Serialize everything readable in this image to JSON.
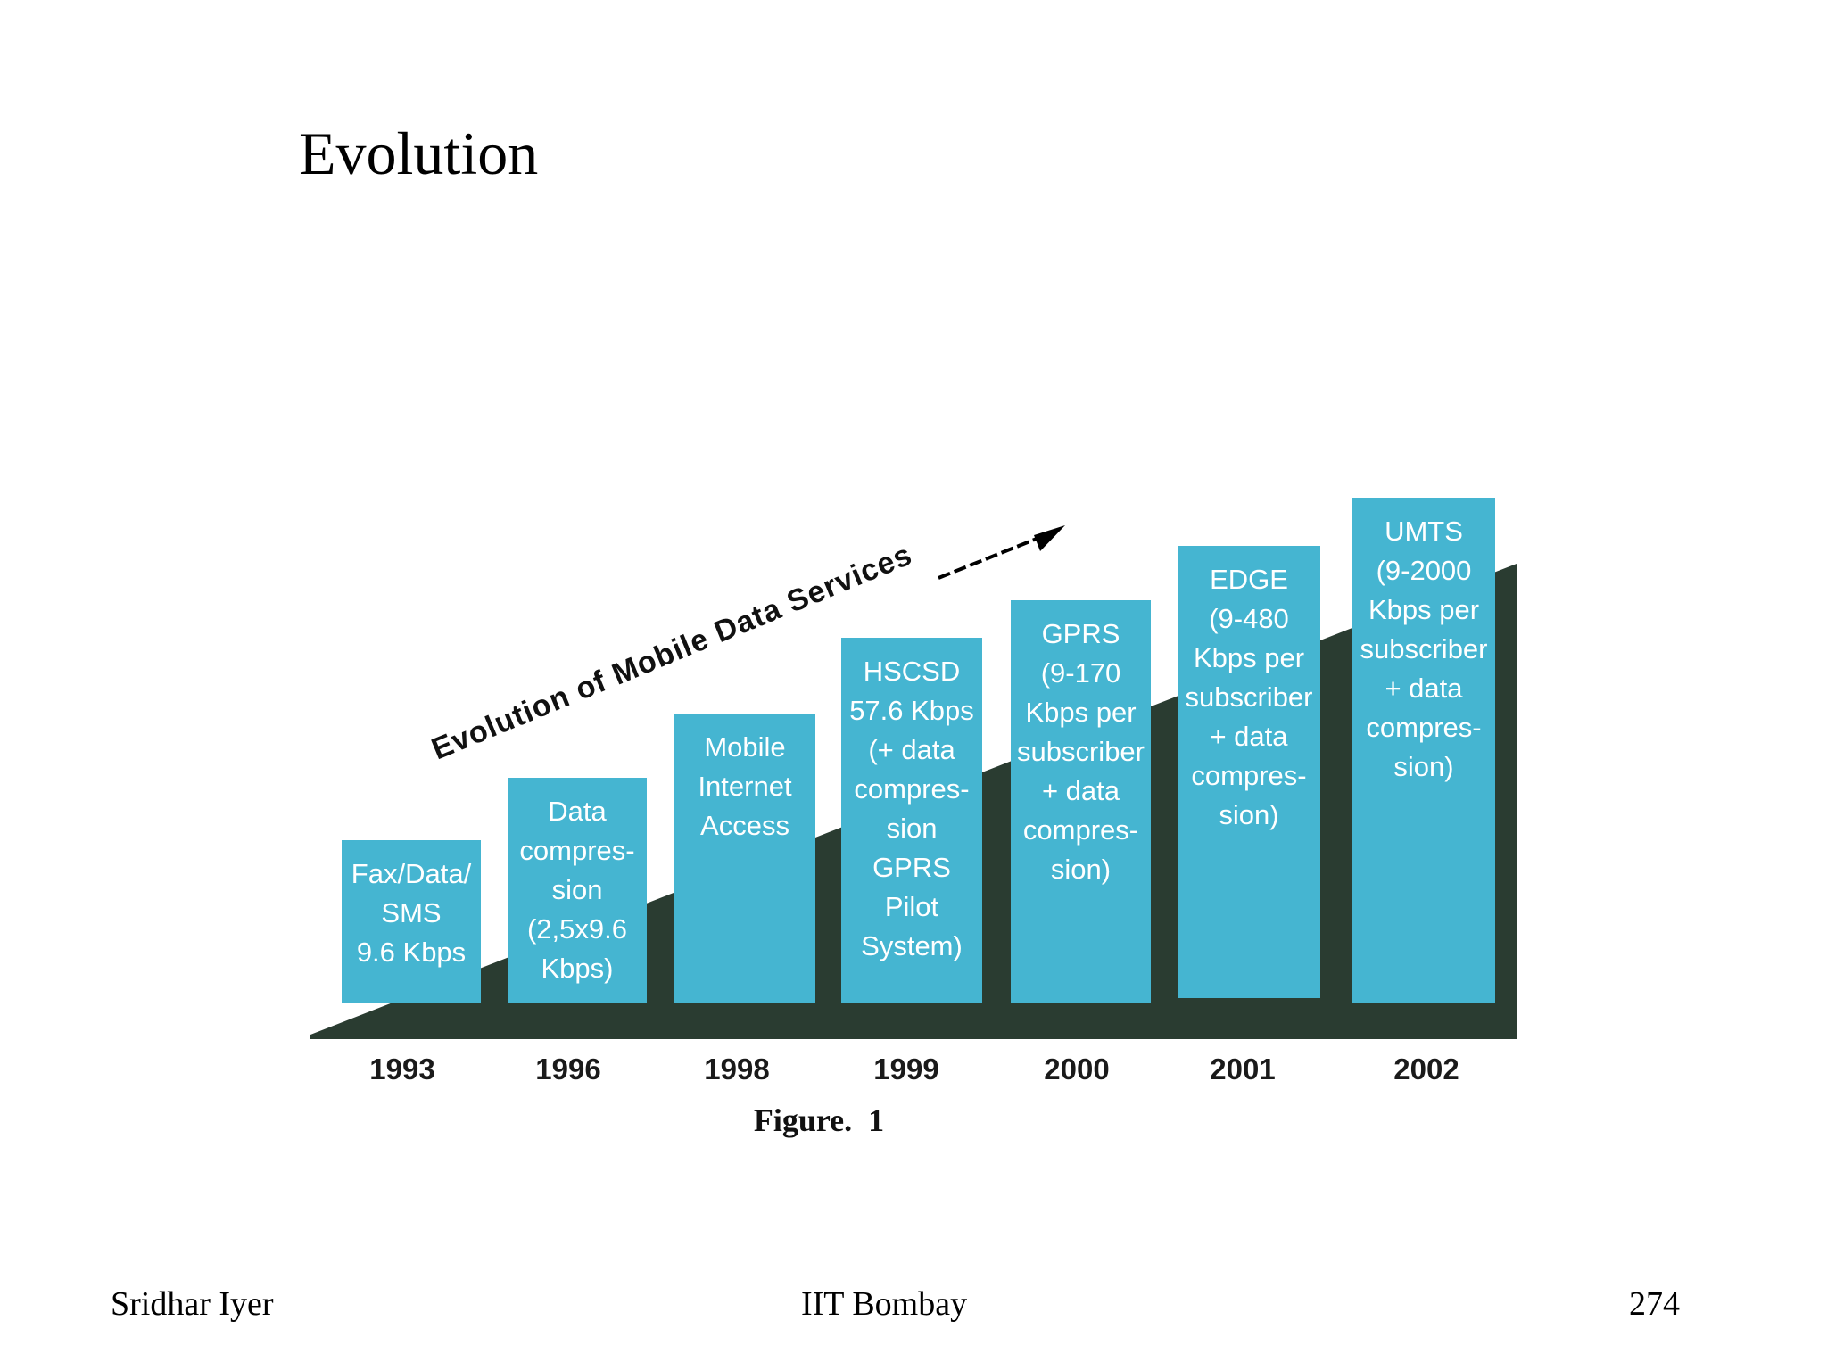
{
  "slide": {
    "title": "Evolution"
  },
  "figure": {
    "trend_label": "Evolution of Mobile Data Services",
    "caption": "Figure.  1",
    "colors": {
      "bar": "#45b5d1",
      "ramp": "#2a3c31",
      "bar_text": "#ffffff"
    },
    "columns": [
      {
        "year": "1993",
        "lines": [
          "Fax/Data/",
          "SMS",
          "9.6 Kbps"
        ]
      },
      {
        "year": "1996",
        "lines": [
          "Data",
          "compres-",
          "sion",
          "(2,5x9.6",
          "Kbps)"
        ]
      },
      {
        "year": "1998",
        "lines": [
          "Mobile",
          "Internet",
          "Access"
        ]
      },
      {
        "year": "1999",
        "lines": [
          "HSCSD",
          "57.6 Kbps",
          "(+ data",
          "compres-",
          "sion",
          "GPRS",
          "Pilot",
          "System)"
        ]
      },
      {
        "year": "2000",
        "lines": [
          "GPRS",
          "(9-170",
          "Kbps per",
          "subscriber",
          "+ data",
          "compres-",
          "sion)"
        ]
      },
      {
        "year": "2001",
        "lines": [
          "EDGE",
          "(9-480",
          "Kbps per",
          "subscriber",
          "+ data",
          "compres-",
          "sion)"
        ]
      },
      {
        "year": "2002",
        "lines": [
          "UMTS",
          "(9-2000",
          "Kbps per",
          "subscriber",
          "+ data",
          "compres-",
          "sion)"
        ]
      }
    ]
  },
  "footer": {
    "author": "Sridhar Iyer",
    "institution": "IIT Bombay",
    "page_number": "274"
  }
}
